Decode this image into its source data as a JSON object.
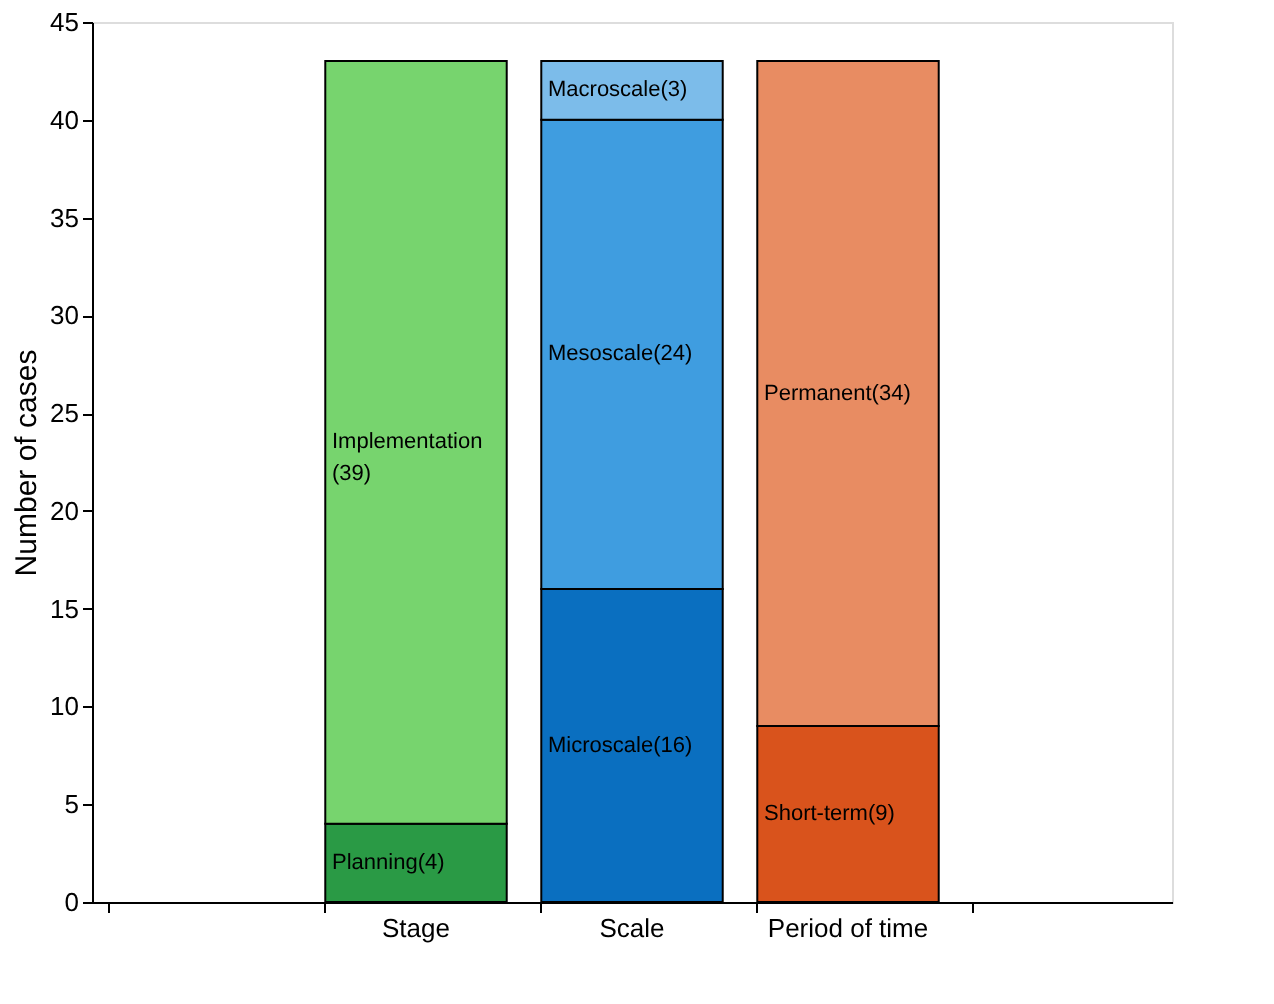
{
  "chart_data": {
    "type": "bar",
    "stacked": true,
    "ylabel": "Number of cases",
    "categories": [
      null,
      "Stage",
      "Scale",
      "Period of time",
      null
    ],
    "series": [
      {
        "color": "#2a9a45",
        "values": [
          null,
          4,
          null,
          null,
          null
        ],
        "value_labels": [
          null,
          "Planning(4)",
          null,
          null,
          null
        ]
      },
      {
        "color": "#77d46e",
        "values": [
          null,
          39,
          null,
          null,
          null
        ],
        "value_labels": [
          null,
          "Implementation\n(39)",
          null,
          null,
          null
        ]
      },
      {
        "color": "#0a6fc0",
        "values": [
          null,
          null,
          16,
          null,
          null
        ],
        "value_labels": [
          null,
          null,
          "Microscale(16)",
          null,
          null
        ]
      },
      {
        "color": "#3f9de0",
        "values": [
          null,
          null,
          24,
          null,
          null
        ],
        "value_labels": [
          null,
          null,
          "Mesoscale(24)",
          null,
          null
        ]
      },
      {
        "color": "#7cbcea",
        "values": [
          null,
          null,
          3,
          null,
          null
        ],
        "value_labels": [
          null,
          null,
          "Macroscale(3)",
          null,
          null
        ]
      },
      {
        "color": "#d9531c",
        "values": [
          null,
          null,
          null,
          9,
          null
        ],
        "value_labels": [
          null,
          null,
          null,
          "Short-term(9)",
          null
        ]
      },
      {
        "color": "#e88c62",
        "values": [
          null,
          null,
          null,
          34,
          null
        ],
        "value_labels": [
          null,
          null,
          null,
          "Permanent(34)",
          null
        ]
      }
    ],
    "ylim": [
      0,
      45
    ],
    "yticks": [
      0,
      5,
      10,
      15,
      20,
      25,
      30,
      35,
      40,
      45
    ],
    "grid": false
  }
}
